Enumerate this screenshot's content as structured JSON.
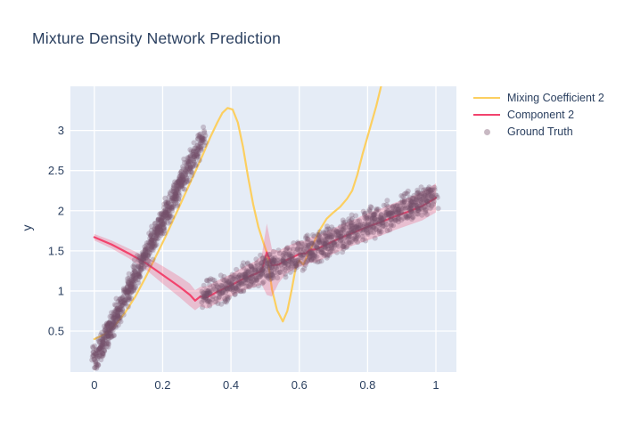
{
  "colors": {
    "paper_bg": "#ffffff",
    "plot_bg": "#e5ecf6",
    "grid": "#ffffff",
    "font": "#2a3f5f",
    "mixing_coefficient": "#fccf60",
    "component": "#f2436d",
    "component_band": "rgba(242,67,109,0.27)",
    "ground_truth": "rgba(117,79,105,0.30)",
    "ground_truth_legend": "rgba(117,79,105,0.40)"
  },
  "legend": {
    "items": [
      {
        "label": "Mixing Coefficient 2",
        "marker": "line",
        "color": "#fccf60"
      },
      {
        "label": "Component 2",
        "marker": "line",
        "color": "#f2436d"
      },
      {
        "label": "Ground Truth",
        "marker": "dot",
        "color": "rgba(117,79,105,0.40)"
      }
    ]
  },
  "chart_data": {
    "type": "line",
    "title": "Mixture Density Network Prediction",
    "xlabel": "",
    "ylabel": "y",
    "xlim": [
      -0.07,
      1.06
    ],
    "ylim": [
      -0.01,
      3.55
    ],
    "grid": true,
    "legend_position": "right",
    "xticks": {
      "values": [
        0,
        0.2,
        0.4,
        0.6,
        0.8,
        1
      ],
      "labels": [
        "0",
        "0.2",
        "0.4",
        "0.6",
        "0.8",
        "1"
      ]
    },
    "yticks": {
      "values": [
        0.5,
        1,
        1.5,
        2,
        2.5,
        3
      ],
      "labels": [
        "0.5",
        "1",
        "1.5",
        "2",
        "2.5",
        "3"
      ]
    },
    "series": [
      {
        "name": "Mixing Coefficient 2",
        "type": "line",
        "color": "#fccf60",
        "width": 2.2,
        "x": [
          0,
          0.03,
          0.06,
          0.09,
          0.12,
          0.15,
          0.18,
          0.21,
          0.24,
          0.27,
          0.3,
          0.32,
          0.34,
          0.36,
          0.375,
          0.39,
          0.405,
          0.42,
          0.435,
          0.45,
          0.465,
          0.48,
          0.495,
          0.505,
          0.52,
          0.535,
          0.552,
          0.565,
          0.578,
          0.59,
          0.6,
          0.612,
          0.625,
          0.64,
          0.66,
          0.68,
          0.7,
          0.72,
          0.74,
          0.755,
          0.77,
          0.785,
          0.805,
          0.825,
          0.84
        ],
        "y": [
          0.4,
          0.46,
          0.57,
          0.73,
          0.93,
          1.17,
          1.43,
          1.69,
          1.97,
          2.25,
          2.53,
          2.72,
          2.92,
          3.1,
          3.22,
          3.28,
          3.26,
          3.1,
          2.8,
          2.42,
          2.08,
          1.8,
          1.6,
          1.48,
          1.02,
          0.76,
          0.62,
          0.75,
          1.02,
          1.3,
          1.38,
          1.33,
          1.45,
          1.58,
          1.76,
          1.9,
          1.98,
          2.05,
          2.15,
          2.25,
          2.45,
          2.7,
          3.0,
          3.3,
          3.56
        ]
      },
      {
        "name": "Component 2 uncertainty band",
        "type": "band",
        "color": "rgba(242,67,109,0.27)",
        "x": [
          0,
          0.05,
          0.1,
          0.15,
          0.2,
          0.25,
          0.28,
          0.295,
          0.31,
          0.33,
          0.36,
          0.4,
          0.44,
          0.47,
          0.49,
          0.505,
          0.52,
          0.54,
          0.56,
          0.6,
          0.62,
          0.63,
          0.65,
          0.68,
          0.72,
          0.76,
          0.8,
          0.84,
          0.88,
          0.92,
          0.96,
          1.0
        ],
        "upper": [
          1.71,
          1.63,
          1.53,
          1.43,
          1.31,
          1.18,
          1.09,
          1.01,
          1.05,
          1.06,
          1.13,
          1.21,
          1.31,
          1.37,
          1.44,
          1.84,
          1.52,
          1.5,
          1.55,
          1.62,
          1.63,
          1.67,
          1.68,
          1.74,
          1.82,
          1.89,
          1.97,
          2.03,
          2.1,
          2.16,
          2.24,
          2.34
        ],
        "lower": [
          1.63,
          1.53,
          1.41,
          1.27,
          1.09,
          0.92,
          0.81,
          0.76,
          0.81,
          0.78,
          0.85,
          0.93,
          1.01,
          1.05,
          1.08,
          0.95,
          0.93,
          1.1,
          1.21,
          1.3,
          1.31,
          1.35,
          1.36,
          1.42,
          1.5,
          1.57,
          1.63,
          1.69,
          1.76,
          1.82,
          1.88,
          1.98
        ]
      },
      {
        "name": "Component 2",
        "type": "line",
        "color": "#f2436d",
        "width": 2.2,
        "x": [
          0,
          0.05,
          0.1,
          0.15,
          0.2,
          0.25,
          0.28,
          0.295,
          0.31,
          0.33,
          0.36,
          0.4,
          0.44,
          0.47,
          0.49,
          0.505,
          0.52,
          0.54,
          0.56,
          0.6,
          0.62,
          0.63,
          0.65,
          0.68,
          0.72,
          0.76,
          0.8,
          0.84,
          0.88,
          0.92,
          0.96,
          1.0
        ],
        "y": [
          1.67,
          1.58,
          1.47,
          1.35,
          1.2,
          1.05,
          0.95,
          0.88,
          0.93,
          0.92,
          0.99,
          1.07,
          1.16,
          1.21,
          1.25,
          1.48,
          1.32,
          1.33,
          1.38,
          1.46,
          1.47,
          1.51,
          1.52,
          1.58,
          1.66,
          1.73,
          1.8,
          1.86,
          1.93,
          1.99,
          2.06,
          2.16
        ]
      },
      {
        "name": "Ground Truth",
        "type": "scatter_band",
        "color": "rgba(117,79,105,0.30)",
        "dot_radius": 3,
        "seed": 7,
        "segments": [
          {
            "x0": 0.0,
            "x1": 0.322,
            "y_start": 0.13,
            "y_end": 2.95,
            "half_width": 0.19,
            "x_jitter": 0.008,
            "count": 850
          },
          {
            "x0": 0.318,
            "x1": 1.0,
            "y_start": 0.93,
            "y_end": 2.2,
            "half_width": 0.22,
            "x_jitter": 0.008,
            "count": 1000
          }
        ]
      }
    ]
  }
}
